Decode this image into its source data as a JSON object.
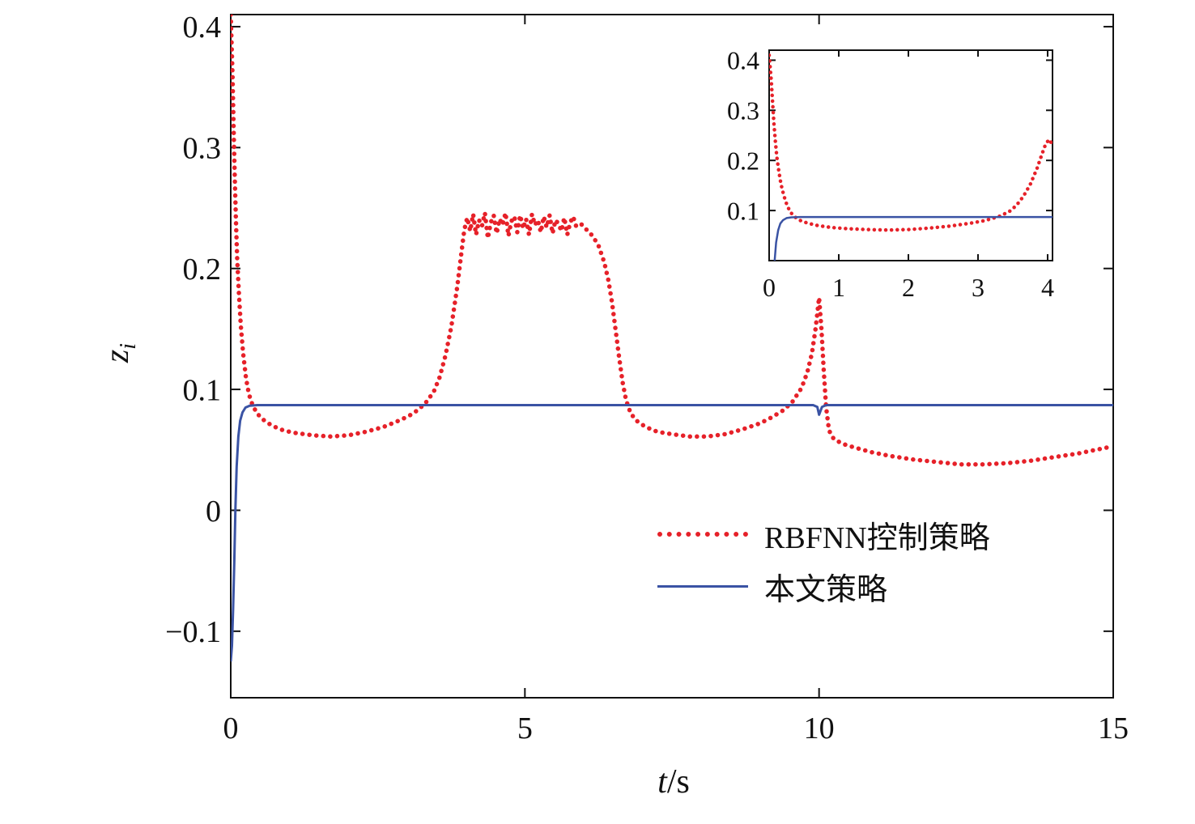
{
  "chart_data": {
    "type": "line",
    "title": "",
    "xlabel": {
      "italic": "t",
      "rest": "/s"
    },
    "ylabel": {
      "base": "z",
      "sub": "i"
    },
    "legend_position": "lower-right-inside",
    "grid": false,
    "colors": {
      "rbfnn": "#e62129",
      "proposed": "#3a53a4",
      "axis": "#111111"
    },
    "main_axes": {
      "xlim": [
        0,
        15
      ],
      "ylim": [
        -0.155,
        0.41
      ],
      "xticks": [
        0,
        5,
        10,
        15
      ],
      "yticks": [
        -0.1,
        0,
        0.1,
        0.2,
        0.3,
        0.4
      ]
    },
    "inset_axes": {
      "xlim": [
        0,
        4.07
      ],
      "ylim": [
        0,
        0.42
      ],
      "xticks": [
        0,
        1,
        2,
        3,
        4
      ],
      "yticks": [
        0.1,
        0.2,
        0.3,
        0.4
      ]
    },
    "series": [
      {
        "name": "RBFNN控制策略",
        "style": "dotted",
        "color": "#e62129",
        "points": [
          [
            0,
            0.41
          ],
          [
            0.03,
            0.36
          ],
          [
            0.05,
            0.315
          ],
          [
            0.07,
            0.272
          ],
          [
            0.09,
            0.238
          ],
          [
            0.11,
            0.207
          ],
          [
            0.14,
            0.178
          ],
          [
            0.17,
            0.153
          ],
          [
            0.21,
            0.13
          ],
          [
            0.26,
            0.109
          ],
          [
            0.31,
            0.096
          ],
          [
            0.37,
            0.087
          ],
          [
            0.45,
            0.08
          ],
          [
            0.55,
            0.075
          ],
          [
            0.7,
            0.07
          ],
          [
            0.9,
            0.066
          ],
          [
            1.1,
            0.064
          ],
          [
            1.4,
            0.062
          ],
          [
            1.7,
            0.061
          ],
          [
            2,
            0.062
          ],
          [
            2.3,
            0.065
          ],
          [
            2.6,
            0.069
          ],
          [
            2.9,
            0.075
          ],
          [
            3.1,
            0.08
          ],
          [
            3.3,
            0.088
          ],
          [
            3.45,
            0.098
          ],
          [
            3.55,
            0.11
          ],
          [
            3.65,
            0.128
          ],
          [
            3.75,
            0.152
          ],
          [
            3.85,
            0.185
          ],
          [
            3.92,
            0.213
          ],
          [
            3.97,
            0.232
          ],
          [
            4.02,
            0.242
          ],
          [
            4.07,
            0.231
          ],
          [
            4.12,
            0.245
          ],
          [
            4.17,
            0.228
          ],
          [
            4.22,
            0.24
          ],
          [
            4.27,
            0.235
          ],
          [
            4.32,
            0.246
          ],
          [
            4.37,
            0.225
          ],
          [
            4.42,
            0.238
          ],
          [
            4.47,
            0.244
          ],
          [
            4.52,
            0.229
          ],
          [
            4.57,
            0.241
          ],
          [
            4.62,
            0.236
          ],
          [
            4.67,
            0.246
          ],
          [
            4.72,
            0.227
          ],
          [
            4.77,
            0.239
          ],
          [
            4.82,
            0.243
          ],
          [
            4.87,
            0.23
          ],
          [
            4.92,
            0.244
          ],
          [
            4.97,
            0.233
          ],
          [
            5.02,
            0.241
          ],
          [
            5.07,
            0.228
          ],
          [
            5.12,
            0.245
          ],
          [
            5.17,
            0.236
          ],
          [
            5.22,
            0.24
          ],
          [
            5.27,
            0.23
          ],
          [
            5.32,
            0.243
          ],
          [
            5.37,
            0.234
          ],
          [
            5.42,
            0.244
          ],
          [
            5.47,
            0.229
          ],
          [
            5.52,
            0.24
          ],
          [
            5.57,
            0.237
          ],
          [
            5.62,
            0.231
          ],
          [
            5.67,
            0.242
          ],
          [
            5.72,
            0.228
          ],
          [
            5.77,
            0.238
          ],
          [
            5.82,
            0.243
          ],
          [
            5.87,
            0.235
          ],
          [
            5.95,
            0.237
          ],
          [
            6.05,
            0.232
          ],
          [
            6.15,
            0.227
          ],
          [
            6.25,
            0.219
          ],
          [
            6.35,
            0.205
          ],
          [
            6.42,
            0.19
          ],
          [
            6.48,
            0.172
          ],
          [
            6.54,
            0.15
          ],
          [
            6.6,
            0.127
          ],
          [
            6.66,
            0.106
          ],
          [
            6.72,
            0.091
          ],
          [
            6.8,
            0.08
          ],
          [
            6.9,
            0.074
          ],
          [
            7.05,
            0.069
          ],
          [
            7.25,
            0.065
          ],
          [
            7.5,
            0.063
          ],
          [
            7.8,
            0.061
          ],
          [
            8.1,
            0.061
          ],
          [
            8.4,
            0.063
          ],
          [
            8.7,
            0.067
          ],
          [
            9,
            0.072
          ],
          [
            9.2,
            0.077
          ],
          [
            9.4,
            0.083
          ],
          [
            9.55,
            0.09
          ],
          [
            9.7,
            0.101
          ],
          [
            9.8,
            0.114
          ],
          [
            9.88,
            0.13
          ],
          [
            9.94,
            0.15
          ],
          [
            10,
            0.176
          ],
          [
            10.04,
            0.15
          ],
          [
            10.08,
            0.115
          ],
          [
            10.12,
            0.085
          ],
          [
            10.17,
            0.066
          ],
          [
            10.25,
            0.059
          ],
          [
            10.4,
            0.055
          ],
          [
            10.6,
            0.052
          ],
          [
            10.9,
            0.048
          ],
          [
            11.2,
            0.045
          ],
          [
            11.6,
            0.042
          ],
          [
            12,
            0.04
          ],
          [
            12.4,
            0.038
          ],
          [
            12.8,
            0.038
          ],
          [
            13.2,
            0.039
          ],
          [
            13.6,
            0.041
          ],
          [
            14,
            0.044
          ],
          [
            14.4,
            0.047
          ],
          [
            14.8,
            0.051
          ],
          [
            15,
            0.053
          ]
        ]
      },
      {
        "name": "本文策略",
        "style": "solid",
        "color": "#3a53a4",
        "points": [
          [
            0,
            -0.125
          ],
          [
            0.02,
            -0.112
          ],
          [
            0.04,
            -0.082
          ],
          [
            0.06,
            -0.042
          ],
          [
            0.08,
            0.002
          ],
          [
            0.1,
            0.036
          ],
          [
            0.13,
            0.061
          ],
          [
            0.16,
            0.074
          ],
          [
            0.2,
            0.081
          ],
          [
            0.25,
            0.085
          ],
          [
            0.32,
            0.0865
          ],
          [
            0.45,
            0.087
          ],
          [
            1,
            0.087
          ],
          [
            2,
            0.087
          ],
          [
            3,
            0.087
          ],
          [
            4,
            0.087
          ],
          [
            5,
            0.087
          ],
          [
            6,
            0.087
          ],
          [
            7,
            0.087
          ],
          [
            8,
            0.087
          ],
          [
            9,
            0.087
          ],
          [
            9.9,
            0.087
          ],
          [
            9.97,
            0.0855
          ],
          [
            10,
            0.079
          ],
          [
            10.05,
            0.0855
          ],
          [
            10.12,
            0.087
          ],
          [
            11,
            0.087
          ],
          [
            12,
            0.087
          ],
          [
            13,
            0.087
          ],
          [
            14,
            0.087
          ],
          [
            15,
            0.087
          ]
        ]
      }
    ]
  }
}
